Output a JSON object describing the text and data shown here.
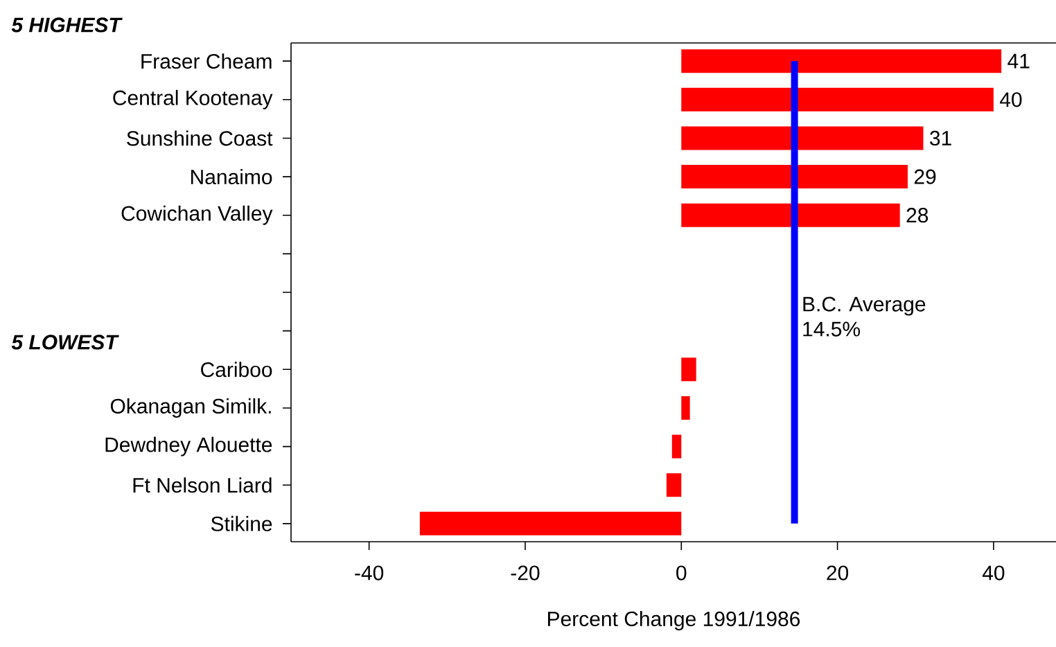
{
  "chart_data": {
    "type": "bar",
    "orientation": "horizontal",
    "categories": [
      "Fraser Cheam",
      "Central Kootenay",
      "Sunshine Coast",
      "Nanaimo",
      "Cowichan Valley",
      null,
      null,
      null,
      "Cariboo",
      "Okanagan Similk.",
      "Dewdney Alouette",
      "Ft Nelson Liard",
      "Stikine"
    ],
    "values": [
      41,
      40,
      31,
      29,
      28,
      null,
      null,
      null,
      1.9,
      1.1,
      -1.2,
      -1.9,
      -33.5
    ],
    "value_labels": [
      "41",
      "40",
      "31",
      "29",
      "28",
      null,
      null,
      null,
      null,
      null,
      null,
      null,
      null
    ],
    "color": "#ff0000",
    "xlim": [
      -50,
      48
    ],
    "xticks": [
      -40,
      -20,
      0,
      20,
      40
    ],
    "xlabel": "Percent Change 1991/1986",
    "ref_lines": [
      {
        "axis": "x",
        "value": 14.5,
        "label": "B.C. Average 14.5%",
        "color": "#0000ff"
      }
    ],
    "annotations": [
      "5 HIGHEST",
      "5 LOWEST"
    ],
    "grid": false
  }
}
